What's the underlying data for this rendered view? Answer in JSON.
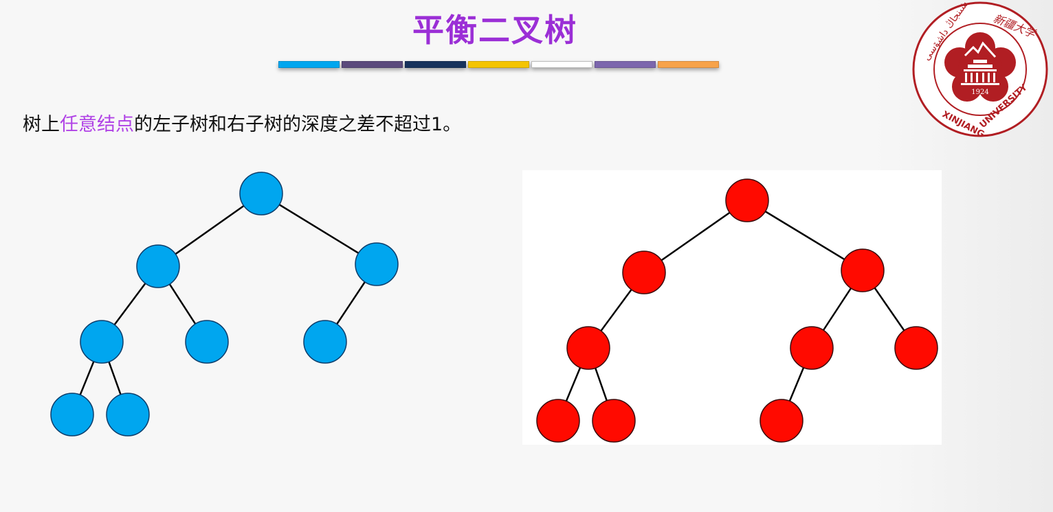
{
  "slide": {
    "title": "平衡二叉树",
    "title_color": "#9b2fd6",
    "accent_bar_colors": [
      "#00a6ef",
      "#5b4a7c",
      "#17325c",
      "#f4c400",
      "#ffffff",
      "#7c67ad",
      "#f7a34a"
    ],
    "statement": {
      "before": "树上",
      "highlight": "任意结点",
      "after": "的左子树和右子树的深度之差不超过1。",
      "highlight_color": "#b042e6"
    }
  },
  "logo": {
    "type": "university-seal",
    "color": "#b11e23",
    "year": "1924",
    "english_left": "XINJIANG",
    "english_right": "UNIVERSITY",
    "chinese_name": "新疆大学",
    "uyghur_name": "شىنجاڭ داشۆسى"
  },
  "trees": [
    {
      "name": "blue",
      "fill": "#00a6ef",
      "stroke": "#0a3d6b",
      "nodes": [
        "root",
        "L",
        "R",
        "LL",
        "LR",
        "RL",
        "LLL",
        "LLR"
      ],
      "edges": [
        [
          "root",
          "L"
        ],
        [
          "root",
          "R"
        ],
        [
          "L",
          "LL"
        ],
        [
          "L",
          "LR"
        ],
        [
          "R",
          "RL"
        ],
        [
          "LL",
          "LLL"
        ],
        [
          "LL",
          "LLR"
        ]
      ]
    },
    {
      "name": "red",
      "fill": "#ff0a00",
      "stroke": "#3a0a0a",
      "nodes": [
        "root",
        "L",
        "R",
        "LL",
        "RL",
        "RR",
        "LLL",
        "LLR",
        "RLL"
      ],
      "edges": [
        [
          "root",
          "L"
        ],
        [
          "root",
          "R"
        ],
        [
          "L",
          "LL"
        ],
        [
          "R",
          "RL"
        ],
        [
          "R",
          "RR"
        ],
        [
          "LL",
          "LLL"
        ],
        [
          "LL",
          "LLR"
        ],
        [
          "RL",
          "RLL"
        ]
      ]
    }
  ]
}
